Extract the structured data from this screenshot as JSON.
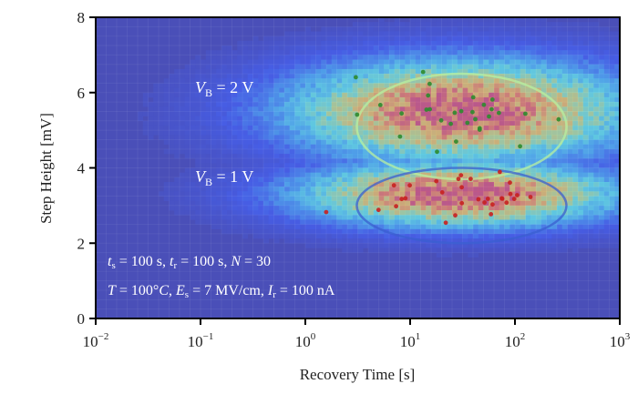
{
  "chart_data": {
    "type": "heatmap",
    "title": "",
    "xlabel": "Recovery Time [s]",
    "ylabel": "Step Height [mV]",
    "xscale": "log",
    "xlim": [
      0.01,
      1000
    ],
    "ylim": [
      0,
      8
    ],
    "xticks": [
      {
        "base": "10",
        "exp": "−2",
        "value": 0.01
      },
      {
        "base": "10",
        "exp": "−1",
        "value": 0.1
      },
      {
        "base": "10",
        "exp": "0",
        "value": 1
      },
      {
        "base": "10",
        "exp": "1",
        "value": 10
      },
      {
        "base": "10",
        "exp": "2",
        "value": 100
      },
      {
        "base": "10",
        "exp": "3",
        "value": 1000
      }
    ],
    "yticks": [
      "0",
      "2",
      "4",
      "6",
      "8"
    ],
    "grid": false,
    "colormap": "jet",
    "background_color": "#4a4fb8",
    "clusters": [
      {
        "name": "V_B = 2 V",
        "label_main": "V",
        "label_sub": "B",
        "label_rest": " = 2 V",
        "center_time_s": 31,
        "center_step_mV": 5.5,
        "spread_decades": 0.75,
        "spread_mV": 0.55,
        "ellipse": {
          "center_time_s": 31,
          "center_step_mV": 5.1,
          "half_width_decades": 1.0,
          "half_height_mV": 1.4
        },
        "ellipse_color": "#b8f0a0",
        "marker_color": "#2e8b2e"
      },
      {
        "name": "V_B = 1 V",
        "label_main": "V",
        "label_sub": "B",
        "label_rest": " = 1 V",
        "center_time_s": 30,
        "center_step_mV": 3.3,
        "spread_decades": 0.7,
        "spread_mV": 0.35,
        "ellipse": {
          "center_time_s": 31,
          "center_step_mV": 3.0,
          "half_width_decades": 1.0,
          "half_height_mV": 1.0
        },
        "ellipse_color": "#3a5fd0",
        "marker_color": "#c82020"
      }
    ],
    "annotations": [
      "t_s = 100 s, t_r = 100 s, N = 30",
      "T = 100°C, E_s = 7 MV/cm, I_r = 100 nA"
    ]
  },
  "labels": {
    "vb2": {
      "main": "V",
      "sub": "B",
      "rest": " = 2 V"
    },
    "vb1": {
      "main": "V",
      "sub": "B",
      "rest": " = 1 V"
    },
    "cond1": {
      "t1": "t",
      "s1": "s",
      "v1": " = 100 s, ",
      "t2": "t",
      "s2": "r",
      "v2": " = 100 s, ",
      "n": "N",
      "v3": " = 30"
    },
    "cond2": {
      "t": "T",
      "v1": " = 100°",
      "c": "C",
      "sep": ", ",
      "e": "E",
      "es": "s",
      "v2": " = 7 MV/cm, ",
      "i": "I",
      "is": "r",
      "v3": " = 100 nA"
    }
  }
}
